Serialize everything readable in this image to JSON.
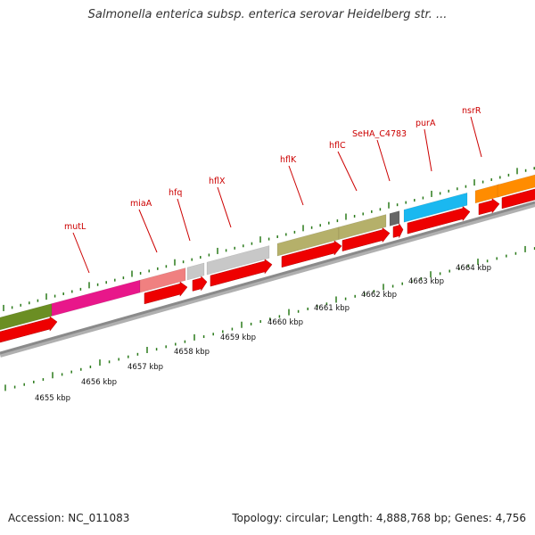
{
  "title": "Salmonella enterica subsp. enterica serovar Heidelberg str. ...",
  "footer": {
    "accession": "Accession: NC_011083",
    "summary": "Topology: circular; Length: 4,888,768 bp; Genes: 4,756"
  },
  "colors": {
    "backbone": "#8a8a8a",
    "cds": "#ee0000",
    "tick": "#2a7a1a",
    "label": "#cc0000"
  },
  "kbp_labels": [
    "4655 kbp",
    "4656 kbp",
    "4657 kbp",
    "4658 kbp",
    "4659 kbp",
    "4660 kbp",
    "4661 kbp",
    "4662 kbp",
    "4663 kbp",
    "4664 kbp"
  ],
  "genes": [
    {
      "name": "",
      "color": "#6b8e23"
    },
    {
      "name": "mutL",
      "color": "#e8178a"
    },
    {
      "name": "miaA",
      "color": "#f08080"
    },
    {
      "name": "hfq",
      "color": "#c8c8c8"
    },
    {
      "name": "hflX",
      "color": "#c8c8c8"
    },
    {
      "name": "hflK",
      "color": "#b5b06a"
    },
    {
      "name": "hflC",
      "color": "#b5b06a"
    },
    {
      "name": "SeHA_C4783",
      "color": "#666666"
    },
    {
      "name": "purA",
      "color": "#1ab8f0"
    },
    {
      "name": "nsrR",
      "color": "#ff8c00"
    },
    {
      "name": "",
      "color": "#ff8c00"
    }
  ]
}
